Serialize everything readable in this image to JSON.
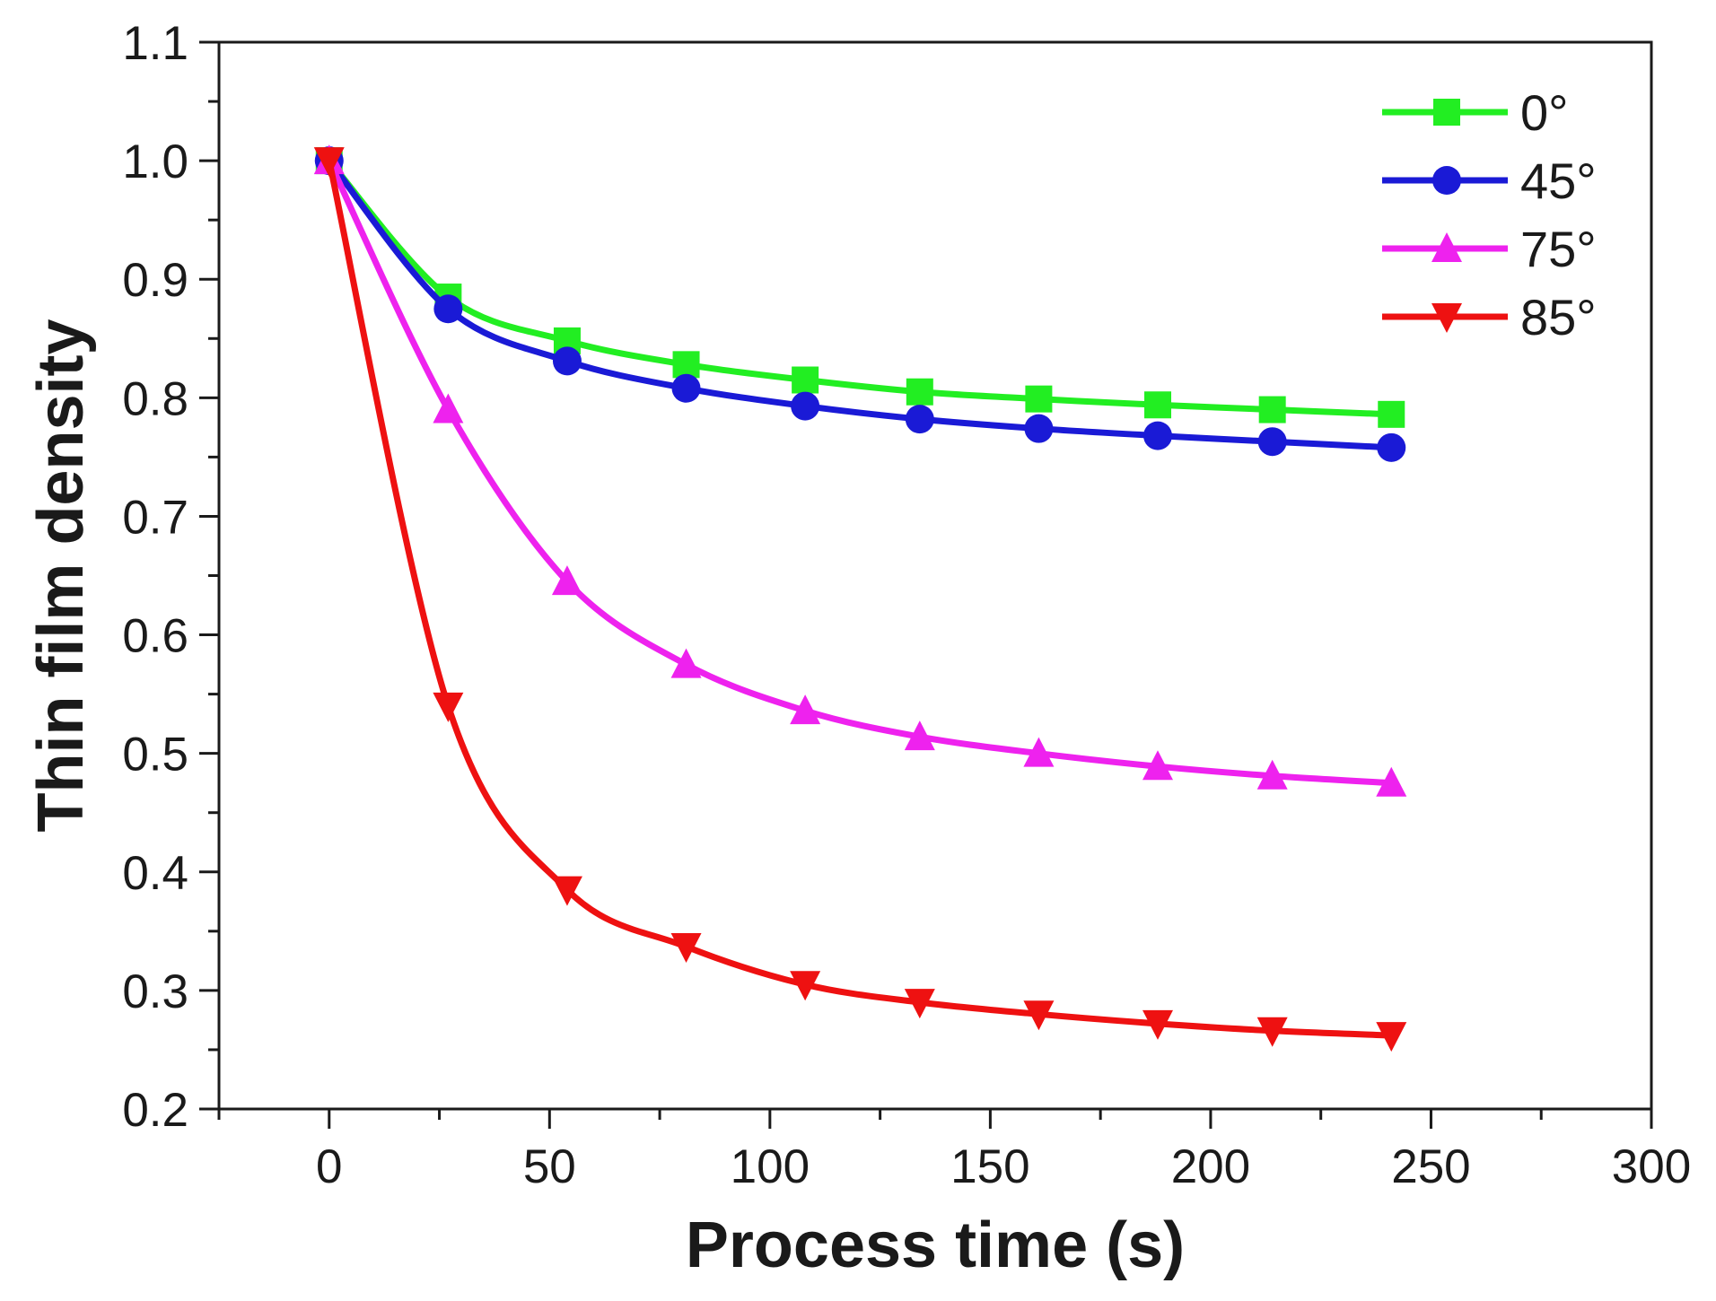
{
  "chart_data": {
    "type": "line",
    "title": "",
    "xlabel": "Process time (s)",
    "ylabel": "Thin film density",
    "xlim": [
      -25,
      300
    ],
    "ylim": [
      0.2,
      1.1
    ],
    "xticks": [
      0,
      50,
      100,
      150,
      200,
      250,
      300
    ],
    "yticks": [
      0.2,
      0.3,
      0.4,
      0.5,
      0.6,
      0.7,
      0.8,
      0.9,
      1.0,
      1.1
    ],
    "xtick_labels": [
      "0",
      "50",
      "100",
      "150",
      "200",
      "250",
      "300"
    ],
    "ytick_labels": [
      "0.2",
      "0.3",
      "0.4",
      "0.5",
      "0.6",
      "0.7",
      "0.8",
      "0.9",
      "1.0",
      "1.1"
    ],
    "legend_position": "top-right",
    "x": [
      0,
      27,
      54,
      81,
      108,
      134,
      161,
      188,
      214,
      241
    ],
    "series": [
      {
        "name": "0°",
        "color": "#22ee22",
        "marker": "square",
        "values": [
          1.0,
          0.885,
          0.848,
          0.828,
          0.815,
          0.805,
          0.799,
          0.794,
          0.79,
          0.786
        ]
      },
      {
        "name": "45°",
        "color": "#1a1ad6",
        "marker": "circle",
        "values": [
          1.0,
          0.875,
          0.831,
          0.808,
          0.793,
          0.782,
          0.774,
          0.768,
          0.763,
          0.758
        ]
      },
      {
        "name": "75°",
        "color": "#ee22ee",
        "marker": "triangle-up",
        "values": [
          1.0,
          0.79,
          0.645,
          0.575,
          0.536,
          0.514,
          0.5,
          0.489,
          0.481,
          0.475
        ]
      },
      {
        "name": "85°",
        "color": "#ee1111",
        "marker": "triangle-down",
        "values": [
          1.0,
          0.54,
          0.385,
          0.337,
          0.305,
          0.29,
          0.28,
          0.272,
          0.266,
          0.262
        ]
      }
    ]
  }
}
